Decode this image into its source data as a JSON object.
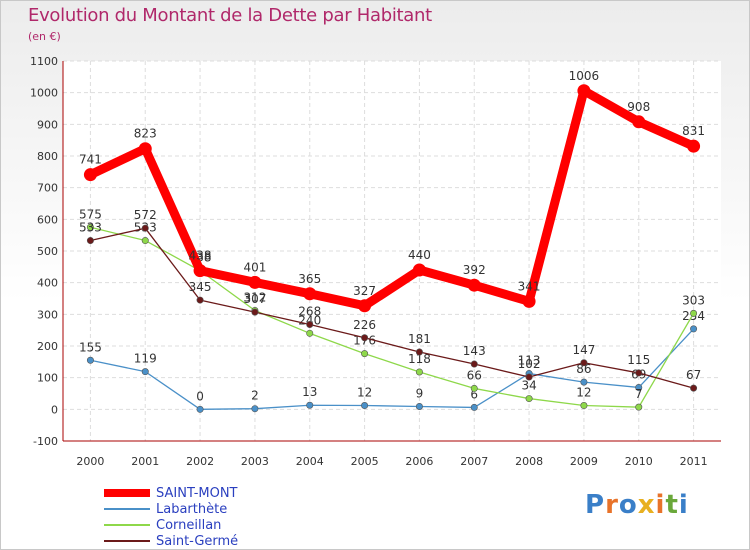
{
  "title": "Evolution du Montant de la Dette par Habitant",
  "unit": "(en €)",
  "logo": "Proxiti",
  "chart_data": {
    "type": "line",
    "x": [
      "2000",
      "2001",
      "2002",
      "2003",
      "2004",
      "2005",
      "2006",
      "2007",
      "2008",
      "2009",
      "2010",
      "2011"
    ],
    "ylim": [
      -100,
      1100
    ],
    "yticks": [
      -100,
      0,
      100,
      200,
      300,
      400,
      500,
      600,
      700,
      800,
      900,
      1000,
      1100
    ],
    "grid": true,
    "series": [
      {
        "name": "SAINT-MONT",
        "color": "#ff0000",
        "values": [
          741,
          823,
          438,
          401,
          365,
          327,
          440,
          392,
          341,
          1006,
          908,
          831
        ]
      },
      {
        "name": "Labarthète",
        "color": "#4a90c8",
        "values": [
          155,
          119,
          0,
          2,
          13,
          12,
          9,
          6,
          113,
          86,
          69,
          254
        ]
      },
      {
        "name": "Corneillan",
        "color": "#8ed84a",
        "values": [
          575,
          533,
          438,
          312,
          240,
          176,
          118,
          66,
          34,
          12,
          7,
          303
        ]
      },
      {
        "name": "Saint-Germé",
        "color": "#6b1a1a",
        "values": [
          533,
          572,
          345,
          307,
          268,
          226,
          181,
          143,
          102,
          147,
          115,
          67
        ]
      }
    ]
  }
}
